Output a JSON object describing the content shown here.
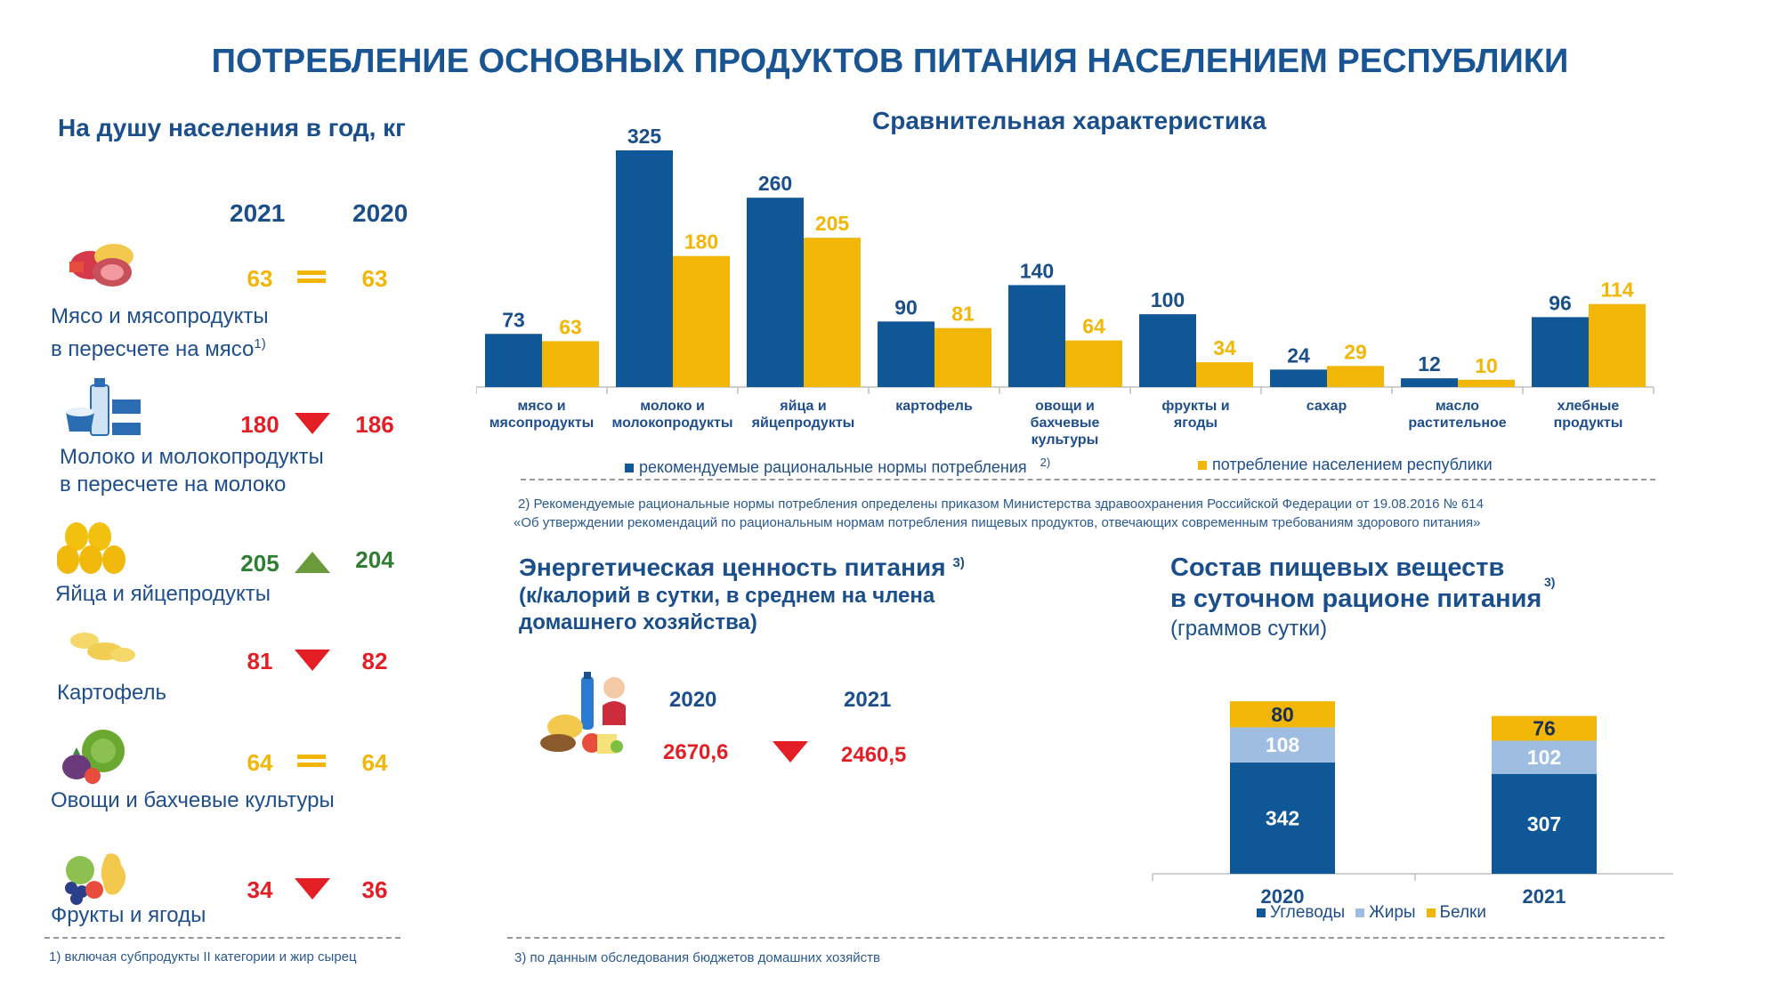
{
  "title": "ПОТРЕБЛЕНИЕ ОСНОВНЫХ ПРОДУКТОВ ПИТАНИЯ НАСЕЛЕНИЕМ РЕСПУБЛИКИ",
  "left": {
    "heading": "На душу населения в год, кг",
    "year_a": "2021",
    "year_b": "2020",
    "items": [
      {
        "icon": "meat-icon",
        "label1": "Мясо и мясопродукты",
        "label2": "в пересчете на мясо",
        "sup": "1)",
        "v2021": "63",
        "v2020": "63",
        "trend": "equal",
        "color2021": "#f2b606",
        "color2020": "#f2b606"
      },
      {
        "icon": "dairy-icon",
        "label1": "Молоко и молокопродукты",
        "label2": "в пересчете на молоко",
        "sup": "",
        "v2021": "180",
        "v2020": "186",
        "trend": "down",
        "color2021": "#e31e24",
        "color2020": "#e31e24"
      },
      {
        "icon": "eggs-icon",
        "label1": "Яйца и яйцепродукты",
        "label2": "",
        "sup": "",
        "v2021": "205",
        "v2020": "204",
        "trend": "up",
        "color2021": "#2e7d32",
        "color2020": "#2e7d32"
      },
      {
        "icon": "potato-icon",
        "label1": "Картофель",
        "label2": "",
        "sup": "",
        "v2021": "81",
        "v2020": "82",
        "trend": "down",
        "color2021": "#e31e24",
        "color2020": "#e31e24"
      },
      {
        "icon": "vegetables-icon",
        "label1": "Овощи и бахчевые культуры",
        "label2": "",
        "sup": "",
        "v2021": "64",
        "v2020": "64",
        "trend": "equal",
        "color2021": "#f2b606",
        "color2020": "#f2b606"
      },
      {
        "icon": "fruits-icon",
        "label1": "Фрукты и ягоды",
        "label2": "",
        "sup": "",
        "v2021": "34",
        "v2020": "36",
        "trend": "down",
        "color2021": "#e31e24",
        "color2020": "#e31e24"
      }
    ],
    "footnote": "1) включая субпродукты II категории и жир сырец"
  },
  "energy": {
    "title1": "Энергетическая ценность питания",
    "sup": "3)",
    "title2": "(к/калорий в сутки, в среднем на члена",
    "title3": "домашнего хозяйства)",
    "icon": "grocery-icon",
    "year_a": "2020",
    "year_b": "2021",
    "value_a": "2670,6",
    "value_b": "2460,5",
    "trend": "down",
    "footnote": "3) по данным обследования бюджетов домашних хозяйств"
  },
  "chart_data": [
    {
      "type": "bar",
      "title": "Сравнительная характеристика",
      "categories": [
        [
          "мясо и",
          "мясопродукты"
        ],
        [
          "молоко и",
          "молокопродукты"
        ],
        [
          "яйца и",
          "яйцепродукты"
        ],
        [
          "картофель"
        ],
        [
          "овощи и",
          "бахчевые",
          "культуры"
        ],
        [
          "фрукты и",
          "ягоды"
        ],
        [
          "сахар"
        ],
        [
          "масло",
          "растительное"
        ],
        [
          "хлебные",
          "продукты"
        ]
      ],
      "series": [
        {
          "name": "рекомендуемые рациональные нормы потребления",
          "color": "#0f5796",
          "values": [
            73,
            325,
            260,
            90,
            140,
            100,
            24,
            12,
            96
          ]
        },
        {
          "name": "потребление населением республики",
          "color": "#f2b606",
          "values": [
            63,
            180,
            205,
            81,
            64,
            34,
            29,
            10,
            114
          ]
        }
      ],
      "legend_sup": "2)",
      "legend_position": "bottom",
      "ylim": [
        0,
        325
      ],
      "grid": false,
      "footnote1": "2) Рекомендуемые рациональные нормы потребления определены приказом Министерства здравоохранения Российской Федерации от 19.08.2016 № 614",
      "footnote2": "«Об утверждении рекомендаций по рациональным нормам потребления пищевых продуктов, отвечающих современным требованиям здорового питания»"
    },
    {
      "type": "bar",
      "stacked": true,
      "title1": "Состав пищевых веществ",
      "title2": "в суточном рационе питания",
      "sup": "3)",
      "subtitle": "(граммов сутки)",
      "categories": [
        "2020",
        "2021"
      ],
      "series": [
        {
          "name": "Углеводы",
          "color": "#0f5796",
          "values": [
            342,
            307
          ]
        },
        {
          "name": "Жиры",
          "color": "#9ebde0",
          "values": [
            108,
            102
          ]
        },
        {
          "name": "Белки",
          "color": "#f2b606",
          "values": [
            80,
            76
          ]
        }
      ],
      "legend_position": "bottom",
      "grid": false
    }
  ]
}
